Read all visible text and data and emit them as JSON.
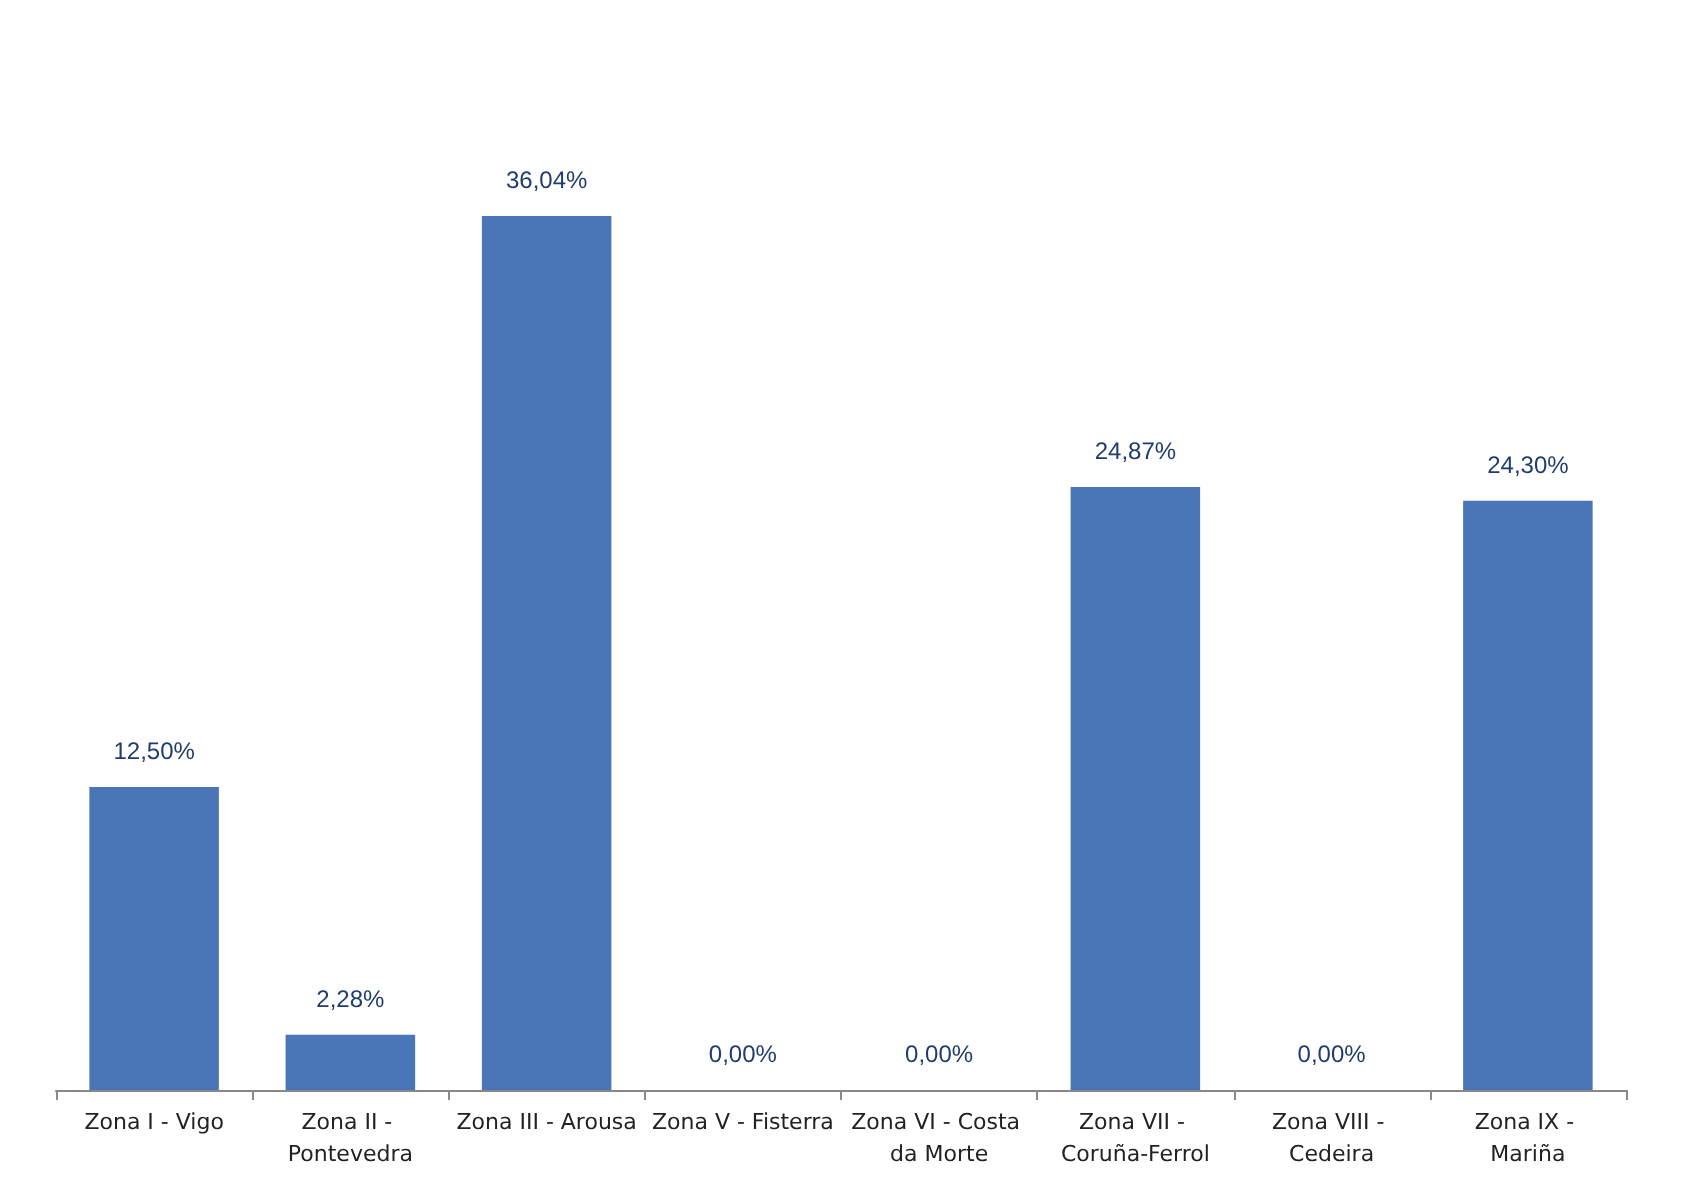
{
  "chart_data": {
    "type": "bar",
    "categories": [
      "Zona I - Vigo",
      "Zona II - Pontevedra",
      "Zona III - Arousa",
      "Zona V - Fisterra",
      "Zona VI - Costa da Morte",
      "Zona VII - Coruña-Ferrol",
      "Zona VIII - Cedeira",
      "Zona IX - Mariña"
    ],
    "values": [
      12.5,
      2.28,
      36.04,
      0,
      0,
      24.87,
      0,
      24.3
    ],
    "value_labels": [
      "12,50%",
      "2,28%",
      "36,04%",
      "0,00%",
      "0,00%",
      "24,87%",
      "0,00%",
      "24,30%"
    ],
    "color": "#4a76b8"
  }
}
